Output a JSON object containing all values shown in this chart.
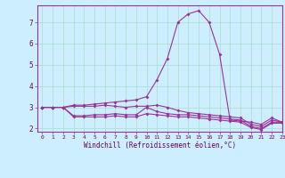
{
  "xlabel": "Windchill (Refroidissement éolien,°C)",
  "bg_color": "#cceeff",
  "line_color": "#993399",
  "grid_color": "#aaddcc",
  "xlim": [
    -0.5,
    23
  ],
  "ylim": [
    1.85,
    7.8
  ],
  "yticks": [
    2,
    3,
    4,
    5,
    6,
    7
  ],
  "xticks": [
    0,
    1,
    2,
    3,
    4,
    5,
    6,
    7,
    8,
    9,
    10,
    11,
    12,
    13,
    14,
    15,
    16,
    17,
    18,
    19,
    20,
    21,
    22,
    23
  ],
  "line1": [
    3.0,
    3.0,
    3.0,
    3.1,
    3.1,
    3.15,
    3.2,
    3.25,
    3.3,
    3.35,
    3.5,
    4.3,
    5.3,
    7.0,
    7.4,
    7.55,
    7.0,
    5.5,
    2.4,
    2.35,
    2.3,
    2.2,
    2.5,
    2.3
  ],
  "line2": [
    3.0,
    3.0,
    3.0,
    3.05,
    3.05,
    3.05,
    3.1,
    3.05,
    3.0,
    3.05,
    3.05,
    3.1,
    3.0,
    2.85,
    2.75,
    2.7,
    2.65,
    2.6,
    2.55,
    2.5,
    2.2,
    2.1,
    2.4,
    2.3
  ],
  "line3": [
    3.0,
    3.0,
    3.0,
    2.6,
    2.6,
    2.65,
    2.65,
    2.7,
    2.65,
    2.65,
    3.0,
    2.8,
    2.7,
    2.65,
    2.65,
    2.6,
    2.55,
    2.5,
    2.45,
    2.4,
    2.1,
    2.0,
    2.3,
    2.3
  ],
  "line4": [
    3.0,
    3.0,
    3.0,
    2.55,
    2.55,
    2.55,
    2.55,
    2.6,
    2.55,
    2.55,
    2.7,
    2.65,
    2.6,
    2.55,
    2.55,
    2.5,
    2.45,
    2.4,
    2.35,
    2.3,
    2.05,
    1.95,
    2.25,
    2.25
  ]
}
